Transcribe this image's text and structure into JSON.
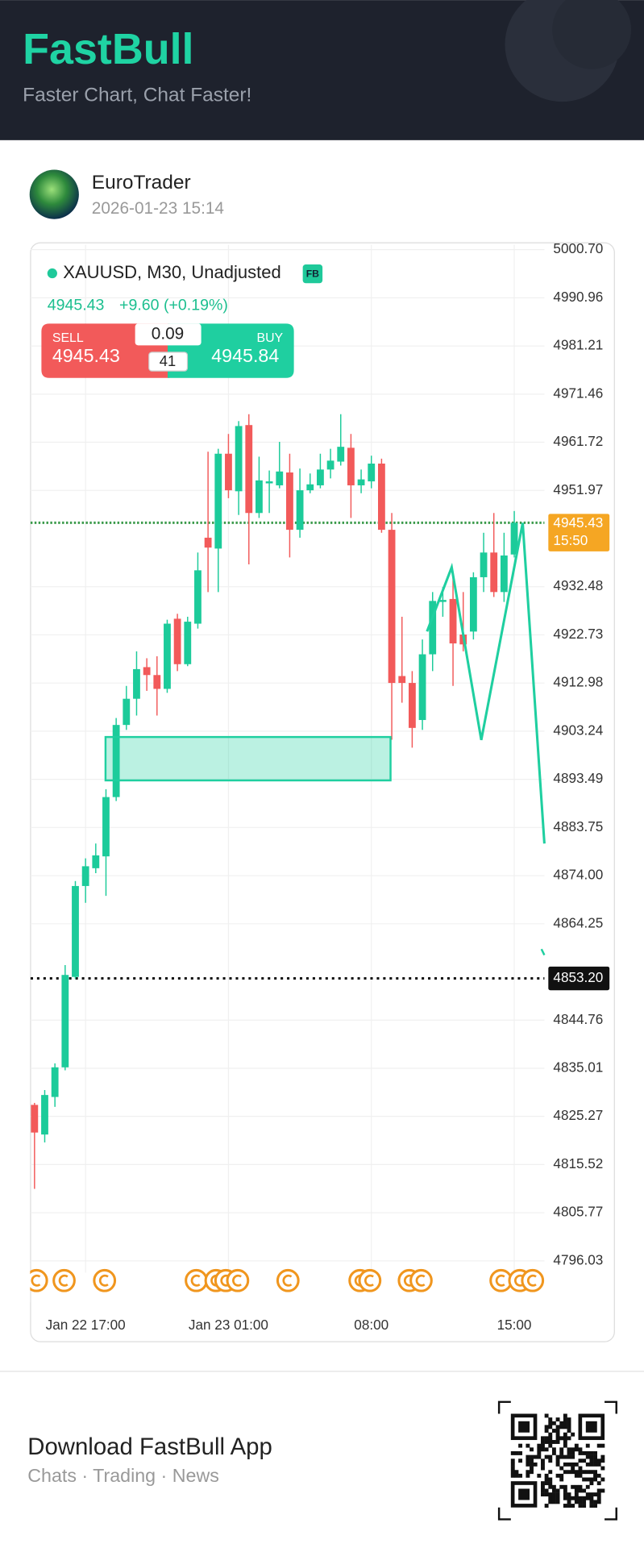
{
  "header": {
    "brand": "FastBull",
    "tagline": "Faster Chart, Chat Faster!"
  },
  "post": {
    "author": "EuroTrader",
    "timestamp": "2026-01-23 15:14"
  },
  "chart_data": {
    "type": "candlestick",
    "title": "XAUUSD, M30, Unadjusted",
    "badge": "FB",
    "last_price": 4945.43,
    "change": "+9.60 (+0.19%)",
    "quote": {
      "sell_label": "SELL",
      "sell": 4945.43,
      "spread": 0.09,
      "lots": 41,
      "buy_label": "BUY",
      "buy": 4945.84
    },
    "up_color": "#1ccb9a",
    "down_color": "#f25a5a",
    "grid": true,
    "ylim": [
      4796.03,
      5000.7
    ],
    "yticks": [
      {
        "value": 5000.7,
        "label": "5000.70"
      },
      4990.96,
      4981.21,
      4971.46,
      4961.72,
      4951.97,
      4932.48,
      4922.73,
      4912.98,
      4903.24,
      4893.49,
      4883.75,
      {
        "value": 4874,
        "label": "4874.00"
      },
      4864.25,
      4844.76,
      4835.01,
      4825.27,
      4815.52,
      4805.77,
      4796.03
    ],
    "categories": [
      null,
      null,
      null,
      null,
      null,
      "Jan 22 17:00",
      null,
      null,
      null,
      null,
      null,
      null,
      null,
      null,
      null,
      null,
      null,
      null,
      null,
      "Jan 23 01:00",
      null,
      null,
      null,
      null,
      null,
      null,
      null,
      null,
      null,
      null,
      null,
      null,
      null,
      "08:00",
      null,
      null,
      null,
      null,
      null,
      null,
      null,
      null,
      null,
      null,
      null,
      null,
      null,
      "15:00"
    ],
    "open": [
      4827.6,
      4821.6,
      4829.2,
      4835.2,
      4853.5,
      4871.9,
      4875.5,
      4877.9,
      4889.9,
      4904.5,
      4909.8,
      4916.2,
      4914.6,
      4911.8,
      4926.0,
      4916.8,
      4925.0,
      4942.4,
      4940.2,
      4959.4,
      4951.8,
      4965.2,
      4947.4,
      4953.4,
      4953.0,
      4955.6,
      4944.0,
      4952.0,
      4953.0,
      4956.2,
      4957.8,
      4960.6,
      4953.0,
      4953.8,
      4957.4,
      4944.0,
      4914.4,
      4913.0,
      4905.5,
      4918.8,
      4929.4,
      4930.0,
      4922.8,
      4923.4,
      4934.4,
      4939.4,
      4931.4,
      4939.0
    ],
    "high": [
      4828.0,
      4830.6,
      4836.0,
      4855.9,
      4872.9,
      4877.5,
      4880.5,
      4891.5,
      4905.9,
      4912.4,
      4919.4,
      4918.0,
      4918.4,
      4925.8,
      4927.0,
      4926.4,
      4939.4,
      4959.8,
      4960.4,
      4963.4,
      4966.0,
      4967.4,
      4958.8,
      4956.0,
      4961.8,
      4959.4,
      4956.4,
      4955.4,
      4959.4,
      4960.4,
      4967.4,
      4963.4,
      4956.2,
      4959.0,
      4958.4,
      4947.4,
      4926.4,
      4915.4,
      4921.8,
      4931.4,
      4932.4,
      4935.4,
      4931.4,
      4935.4,
      4943.4,
      4947.4,
      4943.4,
      4947.8
    ],
    "low": [
      4810.6,
      4820.0,
      4827.2,
      4834.6,
      4853.1,
      4868.5,
      4874.5,
      4869.9,
      4889.1,
      4903.5,
      4906.4,
      4911.4,
      4906.4,
      4911.0,
      4915.4,
      4916.4,
      4924.0,
      4931.4,
      4931.4,
      4950.4,
      4947.0,
      4937.0,
      4946.4,
      4947.4,
      4952.4,
      4938.4,
      4942.4,
      4951.4,
      4952.4,
      4954.4,
      4957.0,
      4946.4,
      4951.4,
      4952.4,
      4943.4,
      4901.5,
      4909.0,
      4899.9,
      4903.5,
      4915.4,
      4926.4,
      4912.4,
      4919.4,
      4921.8,
      4931.4,
      4930.4,
      4929.4,
      4938.4
    ],
    "close": [
      4822.0,
      4829.6,
      4835.2,
      4853.9,
      4871.9,
      4875.9,
      4878.1,
      4889.9,
      4904.5,
      4909.8,
      4915.8,
      4914.6,
      4911.8,
      4925.0,
      4916.8,
      4925.4,
      4935.8,
      4940.4,
      4959.4,
      4952.0,
      4965.0,
      4947.4,
      4954.0,
      4953.8,
      4955.8,
      4944.0,
      4952.0,
      4953.2,
      4956.2,
      4958.0,
      4960.8,
      4953.0,
      4954.2,
      4957.4,
      4944.0,
      4913.0,
      4913.0,
      4903.9,
      4918.8,
      4929.6,
      4929.8,
      4921.0,
      4920.8,
      4934.4,
      4939.4,
      4931.4,
      4938.8,
      4945.43
    ],
    "price_line": {
      "value": 4945.43,
      "label": "4945.43"
    },
    "countdown": "15:50",
    "level_line": {
      "value": 4853.2,
      "label": "4853.20"
    }
  },
  "footer": {
    "title": "Download FastBull App",
    "subtitle": "Chats · Trading · News"
  }
}
